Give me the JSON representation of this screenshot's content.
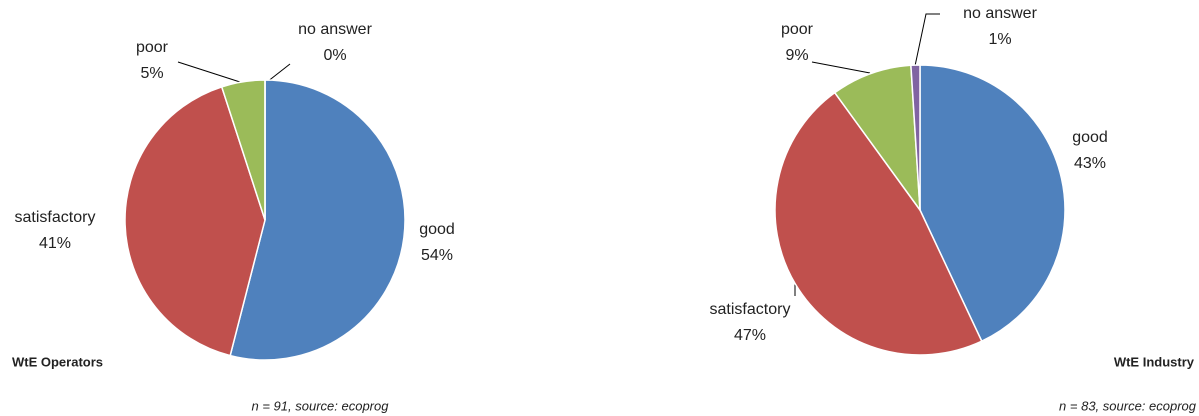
{
  "chart_data": [
    {
      "type": "pie",
      "title": "WtE Operators",
      "note": "n = 91, source: ecoprog",
      "categories": [
        "good",
        "satisfactory",
        "poor",
        "no answer"
      ],
      "values": [
        54,
        41,
        5,
        0
      ],
      "value_labels": [
        "54%",
        "41%",
        "5%",
        "0%"
      ],
      "colors": [
        "#4f81bd",
        "#c0504d",
        "#9bbb59",
        "#8064a2"
      ]
    },
    {
      "type": "pie",
      "title": "WtE Industry",
      "note": "n = 83, source: ecoprog",
      "categories": [
        "good",
        "satisfactory",
        "poor",
        "no answer"
      ],
      "values": [
        43,
        47,
        9,
        1
      ],
      "value_labels": [
        "43%",
        "47%",
        "9%",
        "1%"
      ],
      "colors": [
        "#4f81bd",
        "#c0504d",
        "#9bbb59",
        "#8064a2"
      ]
    }
  ]
}
